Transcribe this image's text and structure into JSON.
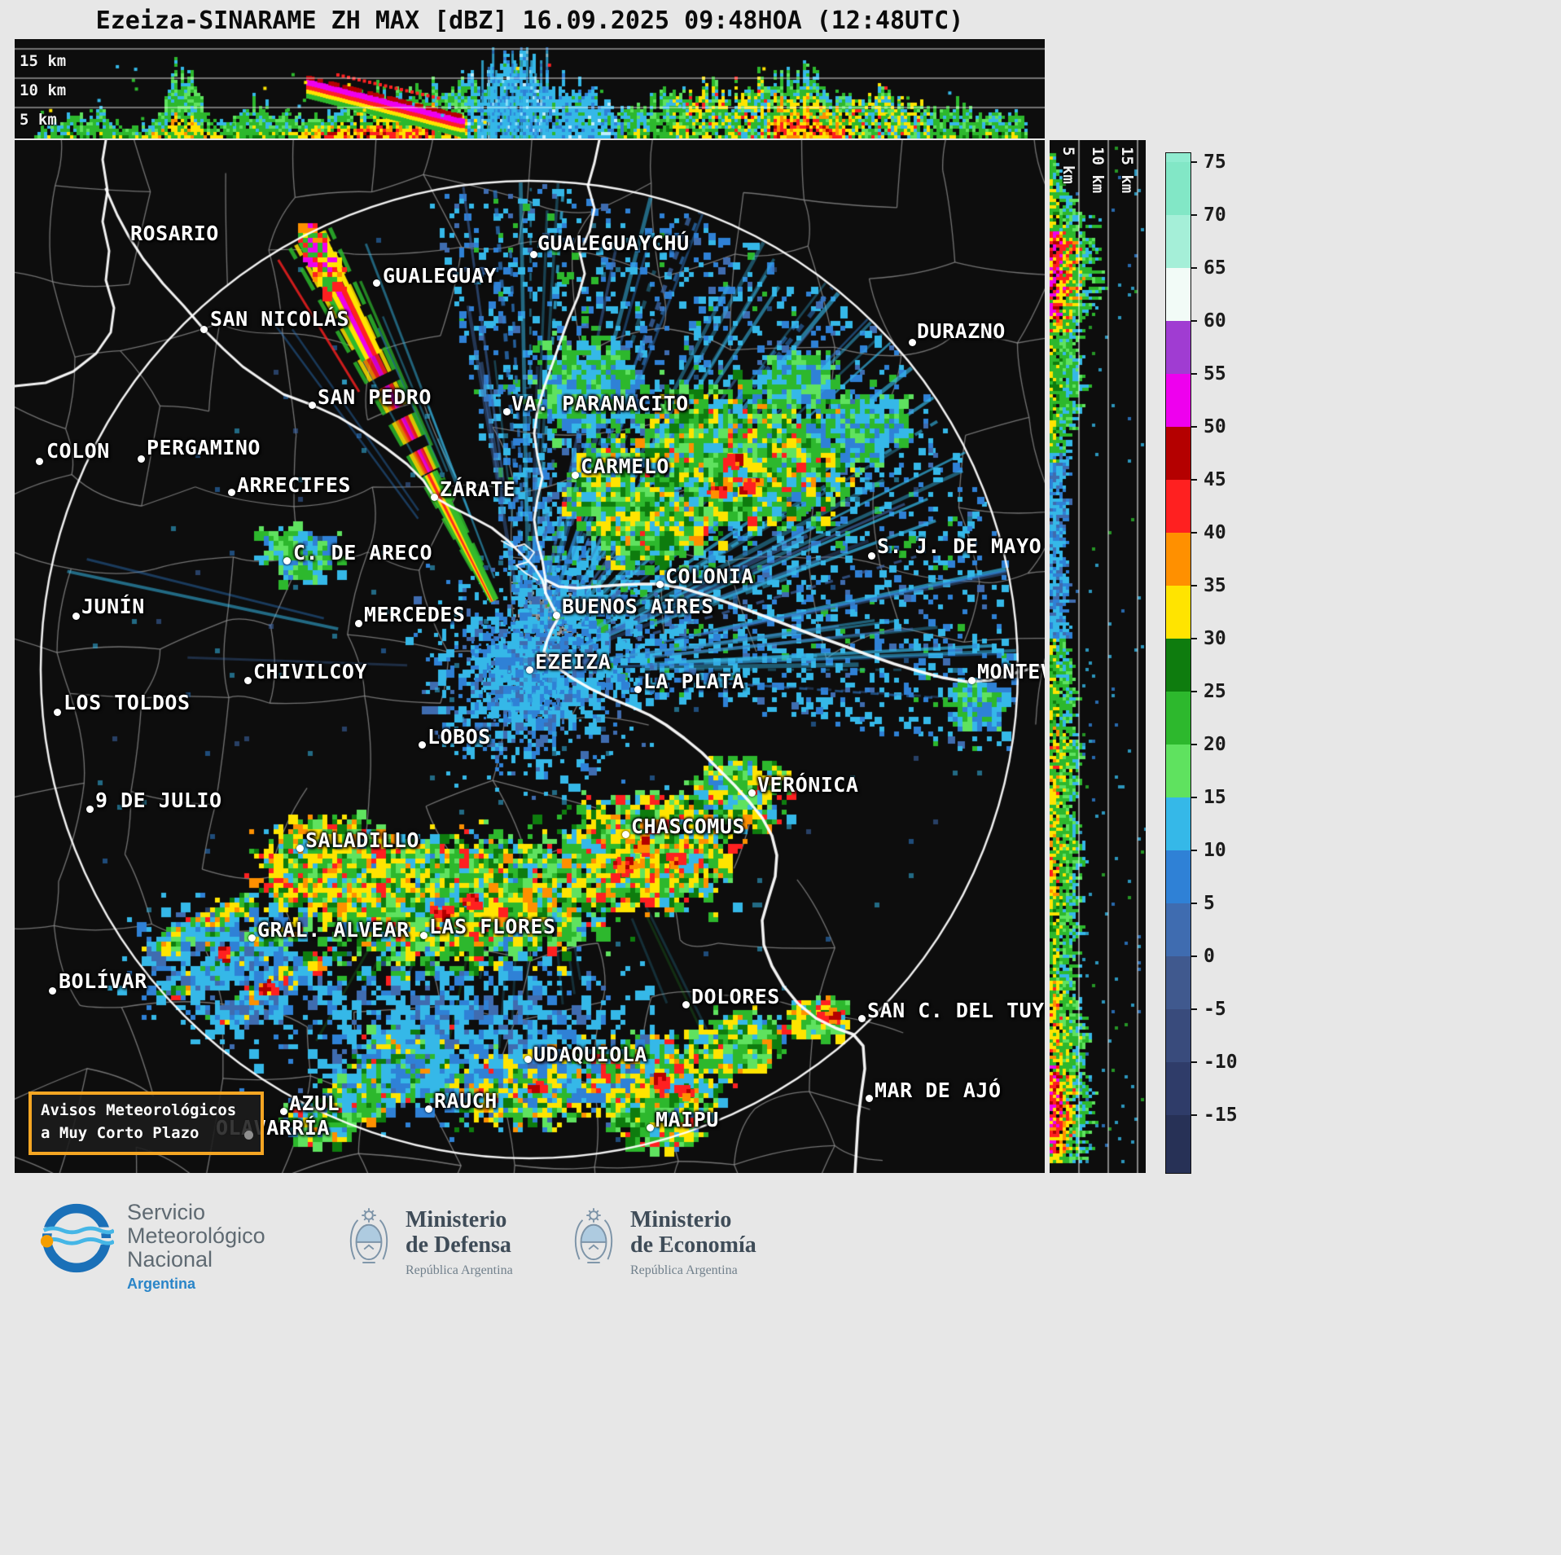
{
  "title": "Ezeiza-SINARAME ZH MAX [dBZ] 16.09.2025 09:48HOA (12:48UTC)",
  "radar": {
    "site": "Ezeiza",
    "network": "SINARAME",
    "product": "ZH MAX",
    "units": "dBZ",
    "datetime_local": "16.09.2025 09:48HOA",
    "datetime_utc": "12:48UTC"
  },
  "top_panel": {
    "altitude_labels": [
      "15 km",
      "10 km",
      "5 km"
    ]
  },
  "side_panel": {
    "altitude_labels": [
      "5 km",
      "10 km",
      "15 km"
    ]
  },
  "colorbar": {
    "ticks": [
      "75",
      "70",
      "65",
      "60",
      "55",
      "50",
      "45",
      "40",
      "35",
      "30",
      "25",
      "20",
      "15",
      "10",
      "5",
      "0",
      "-5",
      "-10",
      "-15"
    ],
    "cap_top": "#90ecd0",
    "segments": [
      "#82e7c6",
      "#a5efd8",
      "#f2fbf7",
      "#a03cd2",
      "#ee00ee",
      "#b40000",
      "#ff2020",
      "#ff9000",
      "#ffe400",
      "#0e7c0e",
      "#2db82d",
      "#5fe25f",
      "#35b8e8",
      "#2f81d6",
      "#3f6cb0",
      "#40598e",
      "#394b7c",
      "#2f3c69"
    ],
    "cap_bottom": "#273156"
  },
  "map": {
    "cities": [
      {
        "name": "ROSARIO",
        "label": [
          142,
          100
        ],
        "dot": null
      },
      {
        "name": "GUALEGUAYCHÚ",
        "label": [
          642,
          112
        ],
        "dot": [
          637,
          140
        ]
      },
      {
        "name": "GUALEGUAY",
        "label": [
          452,
          152
        ],
        "dot": [
          444,
          175
        ]
      },
      {
        "name": "SAN NICOLÁS",
        "label": [
          240,
          205
        ],
        "dot": [
          232,
          232
        ]
      },
      {
        "name": "DURAZNO",
        "label": [
          1108,
          220
        ],
        "dot": [
          1102,
          248
        ]
      },
      {
        "name": "SAN PEDRO",
        "label": [
          372,
          301
        ],
        "dot": [
          365,
          325
        ]
      },
      {
        "name": "VA. PARANACITO",
        "label": [
          610,
          309
        ],
        "dot": [
          604,
          333
        ]
      },
      {
        "name": "COLON",
        "label": [
          39,
          367
        ],
        "dot": [
          30,
          394
        ]
      },
      {
        "name": "PERGAMINO",
        "label": [
          162,
          363
        ],
        "dot": [
          155,
          391
        ]
      },
      {
        "name": "ARRECIFES",
        "label": [
          273,
          409
        ],
        "dot": [
          266,
          432
        ]
      },
      {
        "name": "ZÁRATE",
        "label": [
          522,
          414
        ],
        "dot": [
          515,
          438
        ]
      },
      {
        "name": "CARMELO",
        "label": [
          695,
          386
        ],
        "dot": [
          688,
          411
        ]
      },
      {
        "name": "C. DE ARECO",
        "label": [
          342,
          492
        ],
        "dot": [
          334,
          516
        ]
      },
      {
        "name": "COLONIA",
        "label": [
          799,
          521
        ],
        "dot": [
          792,
          545
        ]
      },
      {
        "name": "S. J. DE MAYO",
        "label": [
          1059,
          484
        ],
        "dot": [
          1052,
          510
        ]
      },
      {
        "name": "JUNÍN",
        "label": [
          82,
          558
        ],
        "dot": [
          75,
          584
        ]
      },
      {
        "name": "MERCEDES",
        "label": [
          429,
          568
        ],
        "dot": [
          422,
          593
        ]
      },
      {
        "name": "BUENOS AIRES",
        "label": [
          672,
          558
        ],
        "dot": [
          665,
          583
        ]
      },
      {
        "name": "EZEIZA",
        "label": [
          639,
          626
        ],
        "dot": [
          632,
          650
        ]
      },
      {
        "name": "CHIVILCOY",
        "label": [
          293,
          638
        ],
        "dot": [
          286,
          663
        ]
      },
      {
        "name": "LA PLATA",
        "label": [
          772,
          650
        ],
        "dot": [
          765,
          674
        ]
      },
      {
        "name": "MONTEVIDEO",
        "label": [
          1182,
          638
        ],
        "dot": [
          1175,
          663
        ]
      },
      {
        "name": "LOS TOLDOS",
        "label": [
          60,
          676
        ],
        "dot": [
          52,
          702
        ]
      },
      {
        "name": "LOBOS",
        "label": [
          507,
          718
        ],
        "dot": [
          500,
          742
        ]
      },
      {
        "name": "VERÓNICA",
        "label": [
          912,
          777
        ],
        "dot": [
          905,
          801
        ]
      },
      {
        "name": "9 DE JULIO",
        "label": [
          99,
          796
        ],
        "dot": [
          92,
          821
        ]
      },
      {
        "name": "CHASCOMUS",
        "label": [
          757,
          828
        ],
        "dot": [
          750,
          852
        ]
      },
      {
        "name": "SALADILLO",
        "label": [
          357,
          845
        ],
        "dot": [
          350,
          869
        ]
      },
      {
        "name": "GRAL. ALVEAR",
        "label": [
          298,
          955
        ],
        "dot": [
          291,
          979
        ]
      },
      {
        "name": "LAS FLORES",
        "label": [
          509,
          951
        ],
        "dot": [
          502,
          976
        ]
      },
      {
        "name": "BOLÍVAR",
        "label": [
          54,
          1018
        ],
        "dot": [
          46,
          1044
        ]
      },
      {
        "name": "DOLORES",
        "label": [
          831,
          1037
        ],
        "dot": [
          824,
          1061
        ]
      },
      {
        "name": "SAN C. DEL TUYÚ",
        "label": [
          1047,
          1054
        ],
        "dot": [
          1040,
          1078
        ]
      },
      {
        "name": "UDAQUIOLA",
        "label": [
          637,
          1108
        ],
        "dot": [
          630,
          1128
        ]
      },
      {
        "name": "AZUL",
        "label": [
          337,
          1168
        ],
        "dot": [
          330,
          1192
        ]
      },
      {
        "name": "RAUCH",
        "label": [
          515,
          1165
        ],
        "dot": [
          508,
          1189
        ]
      },
      {
        "name": "MAR DE AJÓ",
        "label": [
          1056,
          1152
        ],
        "dot": [
          1049,
          1176
        ]
      },
      {
        "name": "OLAVARRÍA",
        "label": [
          247,
          1198
        ],
        "dot": null
      },
      {
        "name": "MAIPU",
        "label": [
          787,
          1188
        ],
        "dot": [
          780,
          1212
        ]
      }
    ]
  },
  "alert_box": {
    "line1": "Avisos Meteorológicos",
    "line2": "a Muy Corto Plazo",
    "border_color": "#f5a623"
  },
  "footer": {
    "smn": {
      "name_lines": [
        "Servicio",
        "Meteorológico",
        "Nacional"
      ],
      "country": "Argentina"
    },
    "defensa": {
      "ministry": "Ministerio",
      "dept": "de Defensa",
      "sub": "República Argentina"
    },
    "economia": {
      "ministry": "Ministerio",
      "dept": "de Economía",
      "sub": "República Argentina"
    }
  }
}
